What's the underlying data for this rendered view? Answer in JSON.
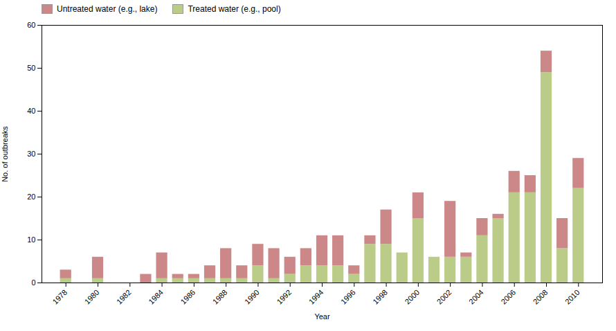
{
  "chart_data": {
    "type": "bar",
    "stacked": true,
    "xlabel": "Year",
    "ylabel": "No. of outbreaks",
    "x": [
      1978,
      1979,
      1980,
      1981,
      1982,
      1983,
      1984,
      1985,
      1986,
      1987,
      1988,
      1989,
      1990,
      1991,
      1992,
      1993,
      1994,
      1995,
      1996,
      1997,
      1998,
      1999,
      2000,
      2001,
      2002,
      2003,
      2004,
      2005,
      2006,
      2007,
      2008,
      2009,
      2010
    ],
    "series": [
      {
        "name": "Treated water (e.g., pool)",
        "color": "#bbcc88",
        "values": [
          1,
          0,
          1,
          0,
          0,
          0,
          1,
          1,
          1,
          1,
          1,
          1,
          4,
          1,
          2,
          4,
          4,
          4,
          2,
          9,
          9,
          7,
          15,
          6,
          6,
          6,
          11,
          15,
          21,
          21,
          49,
          8,
          22
        ]
      },
      {
        "name": "Untreated water (e.g., lake)",
        "color": "#cc8888",
        "values": [
          2,
          0,
          5,
          0,
          0,
          2,
          6,
          1,
          1,
          3,
          7,
          3,
          5,
          7,
          4,
          4,
          7,
          7,
          2,
          2,
          8,
          0,
          6,
          0,
          13,
          1,
          4,
          1,
          5,
          4,
          5,
          7,
          7
        ]
      }
    ],
    "xlim": [
      1976.5,
      2011.5
    ],
    "xticks": [
      1978,
      1980,
      1982,
      1984,
      1986,
      1988,
      1990,
      1992,
      1994,
      1996,
      1998,
      2000,
      2002,
      2004,
      2006,
      2008,
      2010
    ],
    "ylim": [
      0,
      60
    ],
    "yticks": [
      0,
      10,
      20,
      30,
      40,
      50,
      60
    ],
    "grid": false,
    "legend": "upper left"
  }
}
